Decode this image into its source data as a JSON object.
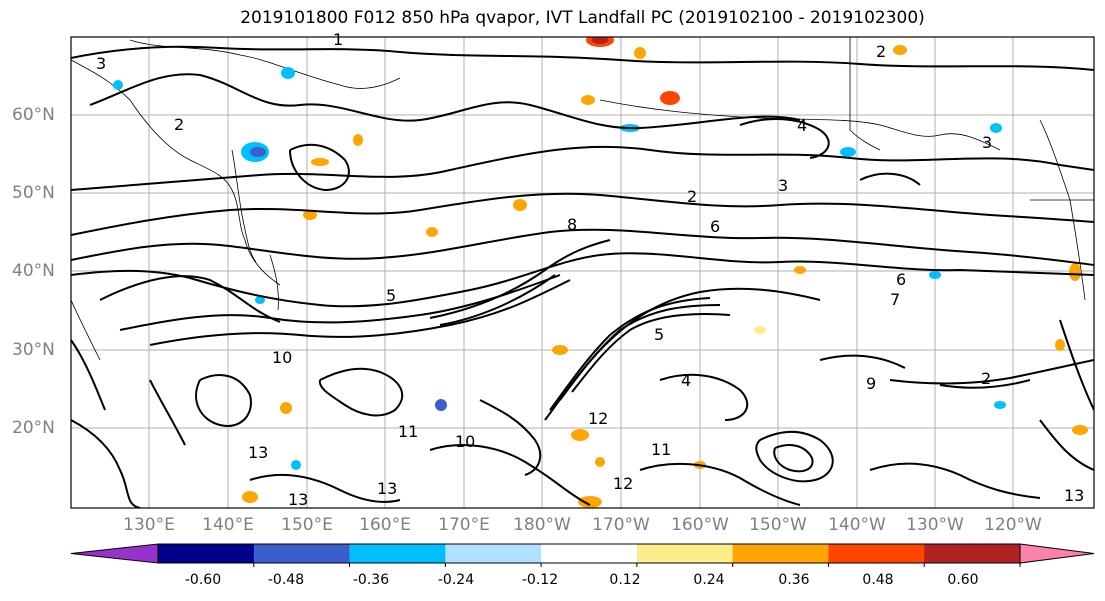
{
  "title": "2019101800 F012 850 hPa qvapor, IVT Landfall PC (2019102100 - 2019102300)",
  "lat_labels": [
    "60°N",
    "50°N",
    "40°N",
    "30°N",
    "20°N"
  ],
  "lon_labels": [
    "130°E",
    "140°E",
    "150°E",
    "160°E",
    "170°E",
    "180°W",
    "170°W",
    "160°W",
    "150°W",
    "140°W",
    "130°W",
    "120°W"
  ],
  "colorbar": {
    "colors": [
      "#9932cc",
      "#00008b",
      "#3a5fcd",
      "#00bfff",
      "#b0e2ff",
      "#ffffff",
      "#ffec8b",
      "#ffa500",
      "#ff4500",
      "#b22222",
      "#ff82ab"
    ],
    "tick_labels": [
      "-0.60",
      "-0.48",
      "-0.36",
      "-0.24",
      "-0.12",
      "0.12",
      "0.24",
      "0.36",
      "0.48",
      "0.60"
    ]
  },
  "contour_labels": [
    "1",
    "3",
    "2",
    "4",
    "3",
    "2",
    "2",
    "3",
    "6",
    "8",
    "5",
    "10",
    "12",
    "11",
    "10",
    "13",
    "13",
    "11",
    "12",
    "13",
    "9",
    "7",
    "6",
    "5",
    "4",
    "2",
    "13"
  ],
  "legend": {}
}
